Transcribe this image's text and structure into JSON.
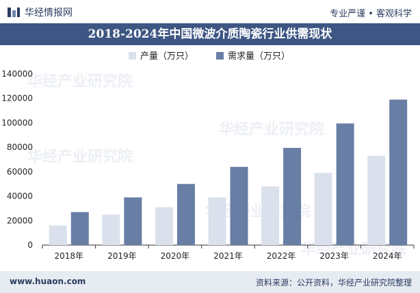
{
  "header": {
    "brand": "华经情报网",
    "tagline": "专业严谨 • 客观科学"
  },
  "title": "2018-2024年中国微波介质陶瓷行业供需现状",
  "footer": {
    "url": "www.huaon.com",
    "source": "资料来源：公开资料，华经产业研究院整理"
  },
  "watermark": "华经产业研究院",
  "colors": {
    "production": "#dbe1ec",
    "demand": "#687ea5",
    "header_bg": "#3e5683"
  },
  "chart_data": {
    "type": "bar",
    "categories": [
      "2018年",
      "2019年",
      "2020年",
      "2021年",
      "2022年",
      "2023年",
      "2024年"
    ],
    "series": [
      {
        "name": "产量（万只）",
        "values": [
          16000,
          25000,
          31000,
          39000,
          48000,
          59000,
          73000
        ]
      },
      {
        "name": "需求量（万只）",
        "values": [
          27000,
          39000,
          50000,
          64000,
          79500,
          99500,
          119000
        ]
      }
    ],
    "ylim": [
      0,
      140000
    ],
    "yticks": [
      0,
      20000,
      40000,
      60000,
      80000,
      100000,
      120000,
      140000
    ],
    "legend_position": "top-center",
    "grid": false
  }
}
